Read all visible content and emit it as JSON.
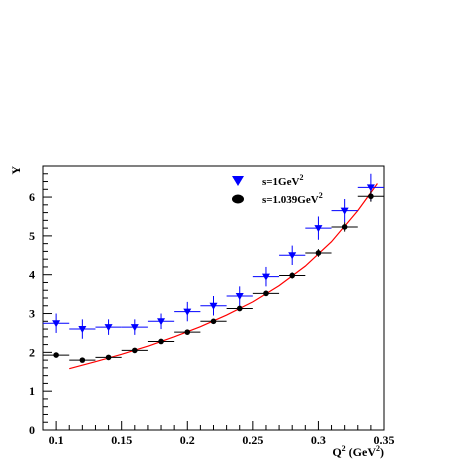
{
  "chart_data": {
    "type": "scatter",
    "title": "",
    "xlabel": "Q",
    "xlabel_sup": "2",
    "xlabel_unit_pre": " (GeV",
    "xlabel_unit_sup": "2",
    "xlabel_unit_post": ")",
    "ylabel": "Y",
    "xlim": [
      0.09,
      0.35
    ],
    "ylim": [
      0,
      6.8
    ],
    "xticks": [
      0.1,
      0.15,
      0.2,
      0.25,
      0.3,
      0.35
    ],
    "xtick_labels": [
      "0.1",
      "0.15",
      "0.2",
      "0.25",
      "0.3",
      "0.35"
    ],
    "yticks": [
      0,
      1,
      2,
      3,
      4,
      5,
      6
    ],
    "ytick_labels": [
      "0",
      "1",
      "2",
      "3",
      "4",
      "5",
      "6"
    ],
    "legend_position": "top-right",
    "grid": false,
    "series": [
      {
        "name": "s=1GeV",
        "name_sup": "2",
        "marker": "triangle-down",
        "color": "#0000ff",
        "x": [
          0.1,
          0.12,
          0.14,
          0.16,
          0.18,
          0.2,
          0.22,
          0.24,
          0.26,
          0.28,
          0.3,
          0.32,
          0.34
        ],
        "y": [
          2.75,
          2.6,
          2.65,
          2.65,
          2.8,
          3.05,
          3.2,
          3.45,
          3.95,
          4.5,
          5.2,
          5.65,
          6.25
        ],
        "xerr": 0.01,
        "yerr": [
          0.25,
          0.25,
          0.2,
          0.2,
          0.2,
          0.25,
          0.25,
          0.25,
          0.25,
          0.25,
          0.3,
          0.3,
          0.35
        ]
      },
      {
        "name": "s=1.039GeV",
        "name_sup": "2",
        "marker": "circle",
        "color": "#000000",
        "x": [
          0.1,
          0.12,
          0.14,
          0.16,
          0.18,
          0.2,
          0.22,
          0.24,
          0.26,
          0.28,
          0.3,
          0.32,
          0.34
        ],
        "y": [
          1.93,
          1.8,
          1.87,
          2.05,
          2.28,
          2.52,
          2.8,
          3.13,
          3.52,
          3.98,
          4.56,
          5.23,
          6.02
        ],
        "xerr": 0.01,
        "yerr": [
          0.04,
          0.04,
          0.04,
          0.05,
          0.06,
          0.06,
          0.06,
          0.07,
          0.07,
          0.08,
          0.1,
          0.12,
          0.14
        ]
      }
    ],
    "fit": {
      "color": "#ff0000",
      "x": [
        0.11,
        0.13,
        0.15,
        0.17,
        0.19,
        0.21,
        0.23,
        0.25,
        0.27,
        0.29,
        0.31,
        0.33,
        0.345
      ],
      "y": [
        1.58,
        1.76,
        1.95,
        2.16,
        2.4,
        2.66,
        2.96,
        3.3,
        3.72,
        4.22,
        4.85,
        5.65,
        6.35
      ]
    }
  }
}
